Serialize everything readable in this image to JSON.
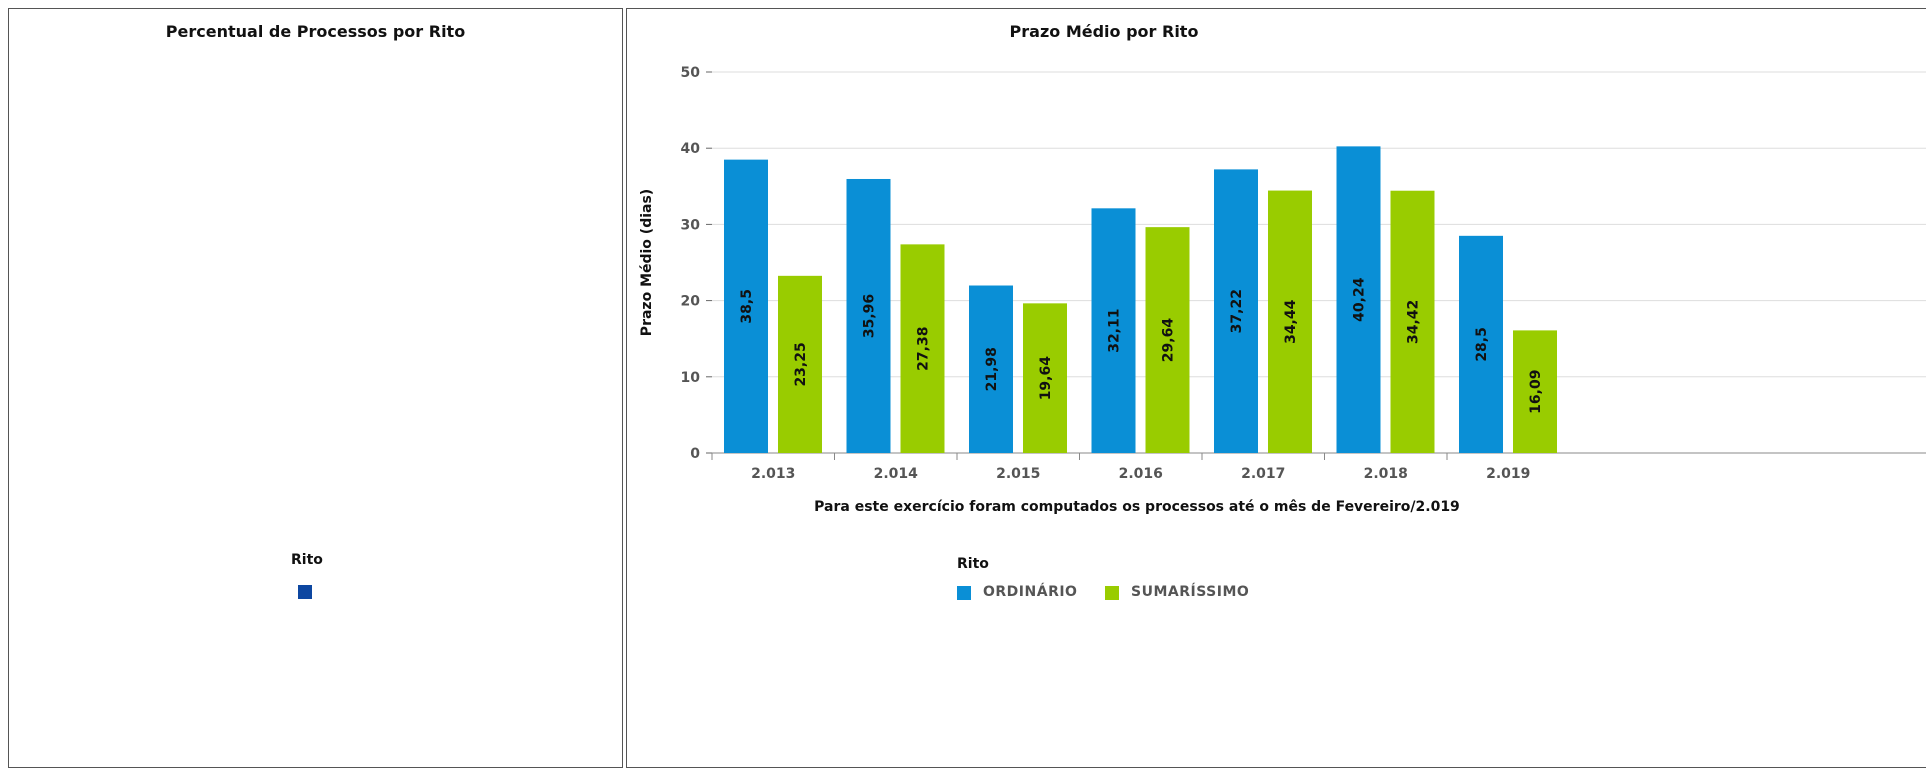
{
  "left_chart": {
    "title": "Percentual de Processos por Rito",
    "legend": {
      "title": "Rito",
      "color": "#0d47a1"
    }
  },
  "right_chart": {
    "title": "Prazo Médio por Rito",
    "footnote": "Para este exercício foram computados os processos até o mês de Fevereiro/2.019",
    "legend": {
      "title": "Rito",
      "items": [
        {
          "label": "ORDINÁRIO",
          "color": "#0a8fd6"
        },
        {
          "label": "SUMARÍSSIMO",
          "color": "#99cc00"
        }
      ]
    }
  },
  "chart_data": [
    {
      "type": "pie",
      "title": "Percentual de Processos por Rito",
      "legend_title": "Rito",
      "slices": []
    },
    {
      "type": "bar",
      "title": "Prazo Médio por Rito",
      "xlabel": "Para este exercício foram computados os processos até o mês de Fevereiro/2.019",
      "ylabel": "Prazo Médio (dias)",
      "ylim": [
        0,
        50
      ],
      "yticks": [
        0,
        10,
        20,
        30,
        40,
        50
      ],
      "grid": true,
      "legend_title": "Rito",
      "legend_position": "bottom",
      "categories": [
        "2.013",
        "2.014",
        "2.015",
        "2.016",
        "2.017",
        "2.018",
        "2.019"
      ],
      "series": [
        {
          "name": "ORDINÁRIO",
          "color": "#0a8fd6",
          "values": [
            38.5,
            35.96,
            21.98,
            32.11,
            37.22,
            40.24,
            28.5
          ],
          "labels": [
            "38,5",
            "35,96",
            "21,98",
            "32,11",
            "37,22",
            "40,24",
            "28,5"
          ]
        },
        {
          "name": "SUMARÍSSIMO",
          "color": "#99cc00",
          "values": [
            23.25,
            27.38,
            19.64,
            29.64,
            34.44,
            34.42,
            16.09
          ],
          "labels": [
            "23,25",
            "27,38",
            "19,64",
            "29,64",
            "34,44",
            "34,42",
            "16,09"
          ]
        }
      ]
    }
  ]
}
